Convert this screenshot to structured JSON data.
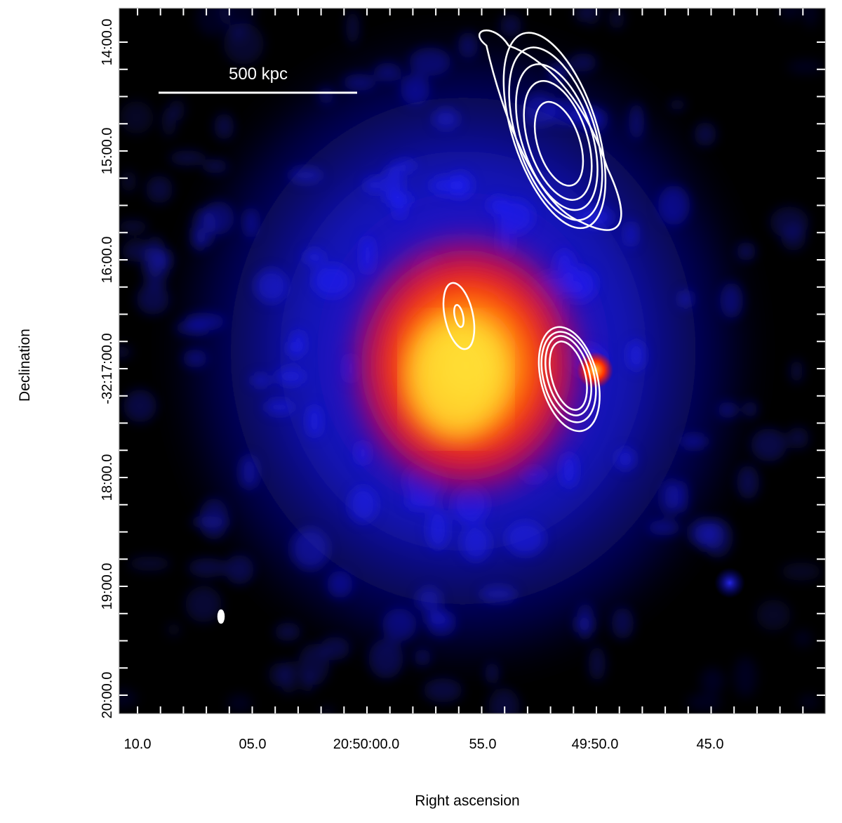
{
  "image": {
    "description_colors": {
      "background": "#000000",
      "diffuse_emission": "#1a1aff",
      "core_red": "#ff1a00",
      "core_yellow": "#ffee33",
      "contour": "#ffffff"
    },
    "scale_bar": {
      "label": "500 kpc"
    },
    "x_axis": {
      "title": "Right ascension",
      "tick_labels": [
        "10.0",
        "05.0",
        "20:50:00.0",
        "55.0",
        "49:50.0",
        "45.0"
      ]
    },
    "y_axis": {
      "title": "Declination",
      "tick_labels": [
        "14:00.0",
        "15:00.0",
        "16:00.0",
        "-32:17:00.0",
        "18:00.0",
        "19:00.0",
        "20:00.0"
      ]
    }
  }
}
